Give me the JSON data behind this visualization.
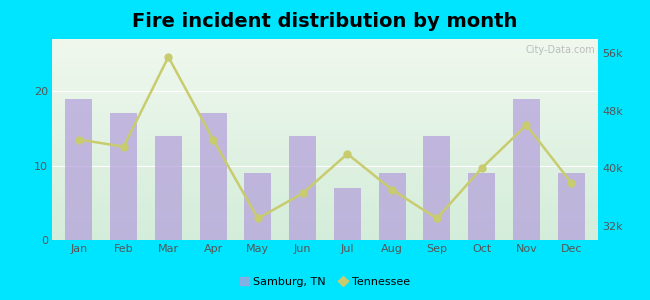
{
  "title": "Fire incident distribution by month",
  "months": [
    "Jan",
    "Feb",
    "Mar",
    "Apr",
    "May",
    "Jun",
    "Jul",
    "Aug",
    "Sep",
    "Oct",
    "Nov",
    "Dec"
  ],
  "samburg_values": [
    19,
    17,
    14,
    17,
    9,
    14,
    7,
    9,
    14,
    9,
    19,
    9
  ],
  "tennessee_values": [
    44000,
    43000,
    55500,
    44000,
    33000,
    36500,
    42000,
    37000,
    33000,
    40000,
    46000,
    38000
  ],
  "bar_color": "#b39ddb",
  "bar_alpha": 0.7,
  "line_color": "#c8cc6e",
  "line_marker_color": "#c8cc6e",
  "bg_top_color": "#f0f8ee",
  "bg_bottom_color": "#d4edda",
  "outer_background": "#00e5ff",
  "ylim_left": [
    0,
    27
  ],
  "ylim_right": [
    30000,
    58000
  ],
  "yticks_left": [
    0,
    10,
    20
  ],
  "yticks_right": [
    32000,
    40000,
    48000,
    56000
  ],
  "ytick_labels_right": [
    "32k",
    "40k",
    "48k",
    "56k"
  ],
  "title_fontsize": 14,
  "watermark": "City-Data.com",
  "legend_samburg": "Samburg, TN",
  "legend_tennessee": "Tennessee"
}
